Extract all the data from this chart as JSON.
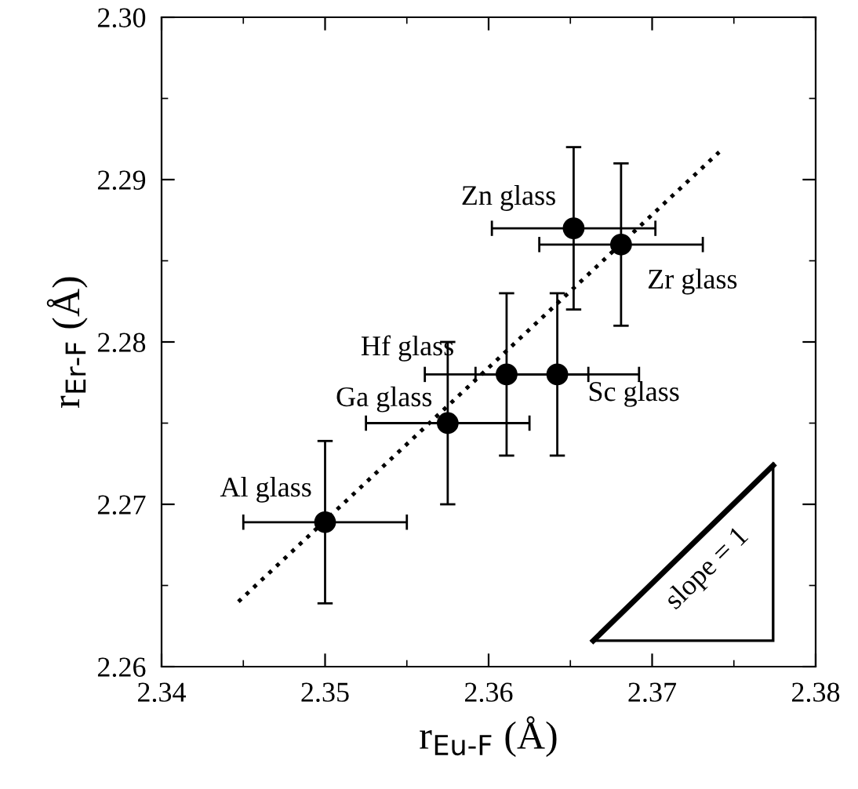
{
  "chart_data": {
    "type": "scatter",
    "xlabel": "r$_{Eu-F}$ (Å)",
    "ylabel": "r$_{Er-F}$ (Å)",
    "xlim": [
      2.34,
      2.38
    ],
    "xticks": [
      2.34,
      2.35,
      2.36,
      2.37,
      2.38
    ],
    "ylim": [
      2.26,
      2.3
    ],
    "yticks": [
      2.26,
      2.27,
      2.28,
      2.29,
      {
        "value": 2.3,
        "label": "2.30"
      }
    ],
    "grid": false,
    "legend": false,
    "series": [
      {
        "color": "#000000",
        "marker": "circle",
        "x": [
          2.35,
          2.3575,
          2.3611,
          2.3642,
          2.3652,
          2.3681
        ],
        "values": [
          2.2689,
          2.275,
          2.278,
          2.278,
          2.287,
          2.286
        ],
        "errors": [
          0.005,
          0.005,
          0.005,
          0.005,
          0.005,
          0.005
        ],
        "xerrors": [
          0.005,
          0.005,
          0.005,
          0.005,
          0.005,
          0.005
        ]
      },
      {
        "type": "line",
        "color": "#000000",
        "line_style": "dotted",
        "marker": "none",
        "x": [
          2.3447,
          2.3741
        ],
        "values": [
          2.264,
          2.2917
        ]
      }
    ],
    "annotations": [
      {
        "text": "Al glass",
        "x": 2.35,
        "y": 2.2689
      },
      {
        "text": "Ga glass",
        "x": 2.3575,
        "y": 2.275
      },
      {
        "text": "Hf glass",
        "x": 2.3611,
        "y": 2.278
      },
      {
        "text": "Sc glass",
        "x": 2.3642,
        "y": 2.278
      },
      {
        "text": "Zn glass",
        "x": 2.3652,
        "y": 2.287
      },
      {
        "text": "Zr glass",
        "x": 2.3681,
        "y": 2.286
      },
      "slope = 1"
    ]
  }
}
